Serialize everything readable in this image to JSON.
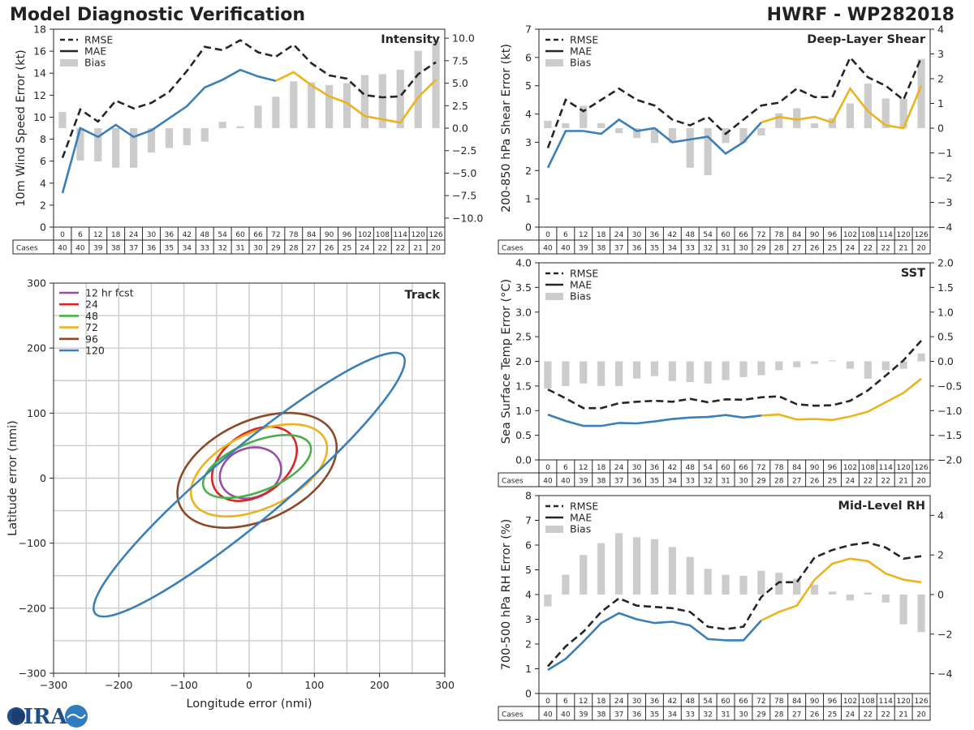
{
  "header": {
    "title": "Model Diagnostic Verification",
    "model_storm": "HWRF - WP282018"
  },
  "logo": {
    "text": "CIRA",
    "alt": "CIRA logo"
  },
  "colors": {
    "rmse": "#262626",
    "mae_early": "#3a7fb8",
    "mae_late": "#ebb41e",
    "bias": "#cccccc",
    "track_12": "#984ea3",
    "track_24": "#d62728",
    "track_48": "#4daf4a",
    "track_72": "#ebb41e",
    "track_96": "#8c4a2a",
    "track_120": "#3a7fb8"
  },
  "legend": {
    "rmse": "RMSE",
    "mae": "MAE",
    "bias": "Bias"
  },
  "cases_label": "Cases",
  "tau": [
    "0",
    "6",
    "12",
    "18",
    "24",
    "30",
    "36",
    "42",
    "48",
    "54",
    "60",
    "66",
    "72",
    "78",
    "84",
    "90",
    "96",
    "102",
    "108",
    "114",
    "120",
    "126"
  ],
  "cases": [
    "40",
    "40",
    "39",
    "38",
    "37",
    "36",
    "35",
    "34",
    "33",
    "32",
    "31",
    "30",
    "29",
    "28",
    "27",
    "26",
    "25",
    "24",
    "22",
    "22",
    "21",
    "20"
  ],
  "chart_data": [
    {
      "type": "line",
      "id": "intensity",
      "title": "Intensity",
      "ylabel": "10m Wind Speed Error (kt)",
      "ylim": [
        0,
        18
      ],
      "yticks": [
        "0",
        "2",
        "4",
        "6",
        "8",
        "10",
        "12",
        "14",
        "16",
        "18"
      ],
      "y2lim": [
        -11.0,
        11.0
      ],
      "y2ticks": [
        "−10.0",
        "−7.5",
        "−5.0",
        "−2.5",
        "0.0",
        "2.5",
        "5.0",
        "7.5",
        "10.0"
      ],
      "rmse": [
        6.3,
        10.7,
        9.6,
        11.5,
        10.8,
        11.3,
        12.3,
        14.2,
        16.4,
        16.1,
        17.0,
        15.9,
        15.5,
        16.6,
        14.9,
        13.8,
        13.5,
        12.0,
        11.8,
        11.9,
        13.9,
        15.0
      ],
      "mae": [
        3.1,
        9.0,
        8.2,
        9.3,
        8.2,
        8.8,
        9.9,
        11.0,
        12.7,
        13.4,
        14.3,
        13.7,
        13.3,
        14.1,
        12.9,
        11.9,
        11.3,
        10.1,
        9.8,
        9.5,
        11.8,
        13.4
      ],
      "mae_color_switch_index": 12,
      "bias": [
        1.8,
        -3.6,
        -3.7,
        -4.4,
        -4.4,
        -2.7,
        -2.2,
        -1.9,
        -1.5,
        0.7,
        0.2,
        2.5,
        3.5,
        5.2,
        5.1,
        4.8,
        5.0,
        5.9,
        6.0,
        6.5,
        8.6,
        9.7
      ]
    },
    {
      "type": "line",
      "id": "shear",
      "title": "Deep-Layer Shear",
      "ylabel": "200-850 hPa Shear Error (kt)",
      "ylim": [
        0,
        7
      ],
      "yticks": [
        "0",
        "1",
        "2",
        "3",
        "4",
        "5",
        "6",
        "7"
      ],
      "y2lim": [
        -4,
        4
      ],
      "y2ticks": [
        "−4",
        "−3",
        "−2",
        "−1",
        "0",
        "1",
        "2",
        "3",
        "4"
      ],
      "rmse": [
        2.8,
        4.5,
        4.1,
        4.5,
        4.9,
        4.5,
        4.3,
        3.8,
        3.6,
        3.9,
        3.3,
        3.8,
        4.3,
        4.4,
        4.9,
        4.6,
        4.6,
        6.0,
        5.3,
        5.0,
        4.5,
        6.0
      ],
      "mae": [
        2.1,
        3.4,
        3.4,
        3.3,
        3.8,
        3.4,
        3.5,
        3.0,
        3.1,
        3.2,
        2.6,
        3.0,
        3.7,
        3.9,
        3.8,
        3.9,
        3.7,
        4.9,
        4.1,
        3.6,
        3.5,
        5.0
      ],
      "mae_color_switch_index": 12,
      "bias": [
        0.3,
        0.2,
        0.9,
        0.2,
        -0.2,
        -0.4,
        -0.6,
        -0.6,
        -1.6,
        -1.9,
        -0.6,
        -0.6,
        -0.3,
        0.6,
        0.8,
        0.2,
        0.4,
        1.0,
        1.8,
        1.2,
        1.2,
        2.8
      ]
    },
    {
      "type": "line",
      "id": "sst",
      "title": "SST",
      "ylabel": "Sea Surface Temp Error (°C)",
      "ylim": [
        0.0,
        4.0
      ],
      "yticks": [
        "0.0",
        "0.5",
        "1.0",
        "1.5",
        "2.0",
        "2.5",
        "3.0",
        "3.5",
        "4.0"
      ],
      "y2lim": [
        -2.0,
        2.0
      ],
      "y2ticks": [
        "−2.0",
        "−1.5",
        "−1.0",
        "−0.5",
        "0.0",
        "0.5",
        "1.0",
        "1.5",
        "2.0"
      ],
      "rmse": [
        1.43,
        1.25,
        1.05,
        1.05,
        1.15,
        1.18,
        1.2,
        1.18,
        1.24,
        1.17,
        1.23,
        1.22,
        1.27,
        1.29,
        1.13,
        1.1,
        1.11,
        1.2,
        1.41,
        1.71,
        2.02,
        2.42
      ],
      "mae": [
        0.92,
        0.79,
        0.69,
        0.69,
        0.75,
        0.74,
        0.78,
        0.83,
        0.86,
        0.87,
        0.91,
        0.86,
        0.9,
        0.92,
        0.82,
        0.83,
        0.81,
        0.88,
        0.98,
        1.17,
        1.36,
        1.65
      ],
      "mae_color_switch_index": 12,
      "bias": [
        -0.55,
        -0.5,
        -0.45,
        -0.5,
        -0.5,
        -0.35,
        -0.3,
        -0.4,
        -0.42,
        -0.45,
        -0.38,
        -0.32,
        -0.28,
        -0.18,
        -0.12,
        -0.05,
        0.02,
        -0.15,
        -0.35,
        -0.18,
        -0.15,
        0.16
      ]
    },
    {
      "type": "line",
      "id": "rh",
      "title": "Mid-Level RH",
      "ylabel": "700-500 hPa RH Error (%)",
      "ylim": [
        0,
        8
      ],
      "yticks": [
        "0",
        "1",
        "2",
        "3",
        "4",
        "5",
        "6",
        "7",
        "8"
      ],
      "y2lim": [
        -5,
        5
      ],
      "y2ticks": [
        "−4",
        "−2",
        "0",
        "2",
        "4"
      ],
      "y2tickvals": [
        -4,
        -2,
        0,
        2,
        4
      ],
      "rmse": [
        1.1,
        1.9,
        2.5,
        3.3,
        3.85,
        3.55,
        3.5,
        3.45,
        3.3,
        2.7,
        2.6,
        2.7,
        3.9,
        4.5,
        4.5,
        5.5,
        5.8,
        6.0,
        6.1,
        5.9,
        5.45,
        5.55
      ],
      "mae": [
        0.95,
        1.4,
        2.1,
        2.85,
        3.25,
        3.0,
        2.85,
        2.9,
        2.75,
        2.2,
        2.15,
        2.15,
        2.95,
        3.3,
        3.55,
        4.6,
        5.25,
        5.45,
        5.35,
        4.85,
        4.6,
        4.5
      ],
      "mae_color_switch_index": 12,
      "bias": [
        -0.6,
        1.0,
        2.0,
        2.6,
        3.1,
        2.9,
        2.8,
        2.4,
        1.9,
        1.3,
        1.0,
        0.95,
        1.2,
        1.1,
        0.8,
        0.5,
        0.15,
        -0.3,
        0.1,
        -0.4,
        -1.5,
        -1.9
      ]
    },
    {
      "type": "scatter",
      "id": "track",
      "title": "Track",
      "xlabel": "Longitude error (nmi)",
      "ylabel": "Latitude error (nmi)",
      "xlim": [
        -300,
        300
      ],
      "ylim": [
        -300,
        300
      ],
      "xticks": [
        "−300",
        "−200",
        "−100",
        "0",
        "100",
        "200",
        "300"
      ],
      "yticks": [
        "−300",
        "−200",
        "−100",
        "0",
        "100",
        "200",
        "300"
      ],
      "legend_loc": "upper-left",
      "ellipses": [
        {
          "label": "12 hr fcst",
          "key": "track_12",
          "cx": 2,
          "cy": 8,
          "a": 48,
          "b": 38,
          "angle_deg": 20
        },
        {
          "label": "24",
          "key": "track_24",
          "cx": 8,
          "cy": 22,
          "a": 72,
          "b": 48,
          "angle_deg": 35
        },
        {
          "label": "48",
          "key": "track_48",
          "cx": 12,
          "cy": 18,
          "a": 88,
          "b": 38,
          "angle_deg": 22
        },
        {
          "label": "72",
          "key": "track_72",
          "cx": 15,
          "cy": 12,
          "a": 112,
          "b": 58,
          "angle_deg": 25
        },
        {
          "label": "96",
          "key": "track_96",
          "cx": 12,
          "cy": 12,
          "a": 130,
          "b": 76,
          "angle_deg": 25
        },
        {
          "label": "120",
          "key": "track_120",
          "cx": 0,
          "cy": -10,
          "a": 308,
          "b": 55,
          "angle_deg": 40
        }
      ]
    }
  ]
}
